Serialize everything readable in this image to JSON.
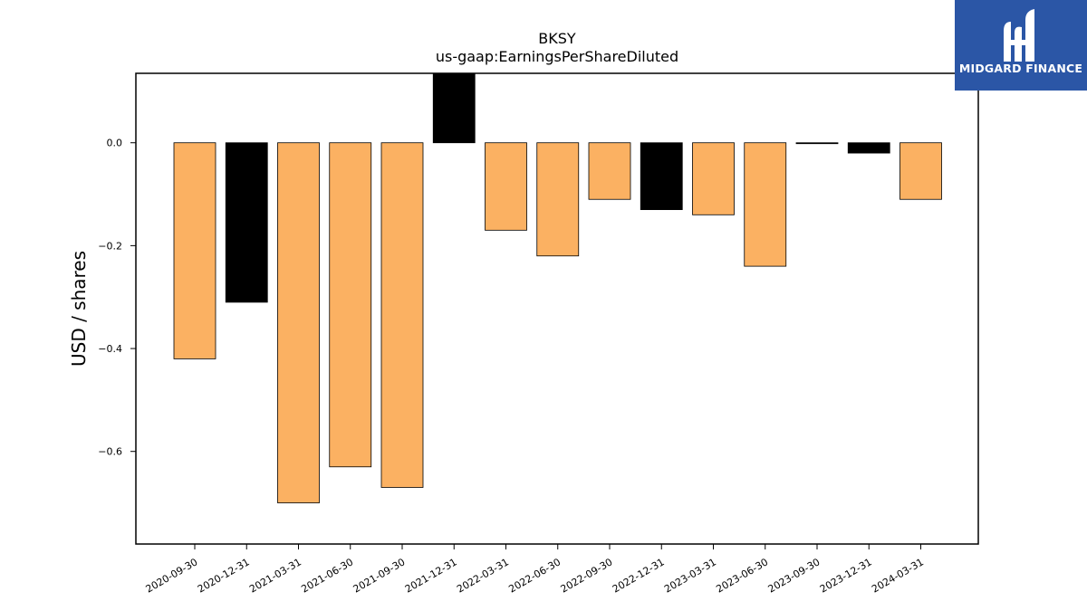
{
  "chart_data": {
    "type": "bar",
    "title": "BKSY",
    "subtitle": "us-gaap:EarningsPerShareDiluted",
    "ylabel": "USD / shares",
    "xlabel": "",
    "ylim": [
      -0.78,
      0.135
    ],
    "yticks": [
      0.0,
      -0.2,
      -0.4,
      -0.6
    ],
    "ytick_labels": [
      "0.0",
      "−0.2",
      "−0.4",
      "−0.6"
    ],
    "grid": false,
    "categories": [
      "2020-09-30",
      "2020-12-31",
      "2021-03-31",
      "2021-06-30",
      "2021-09-30",
      "2021-12-31",
      "2022-03-31",
      "2022-06-30",
      "2022-09-30",
      "2022-12-31",
      "2023-03-31",
      "2023-06-30",
      "2023-09-30",
      "2023-12-31",
      "2024-03-31"
    ],
    "values": [
      -0.42,
      -0.31,
      -0.7,
      -0.63,
      -0.67,
      0.135,
      -0.17,
      -0.22,
      -0.11,
      -0.13,
      -0.14,
      -0.24,
      0.0,
      -0.02,
      -0.11
    ],
    "bar_colors": [
      "#fbb162",
      "#000000",
      "#fbb162",
      "#fbb162",
      "#fbb162",
      "#000000",
      "#fbb162",
      "#fbb162",
      "#fbb162",
      "#000000",
      "#fbb162",
      "#fbb162",
      "#000000",
      "#000000",
      "#fbb162"
    ]
  },
  "logo": {
    "text": "MIDGARD FINANCE",
    "background": "#2b56a6"
  }
}
